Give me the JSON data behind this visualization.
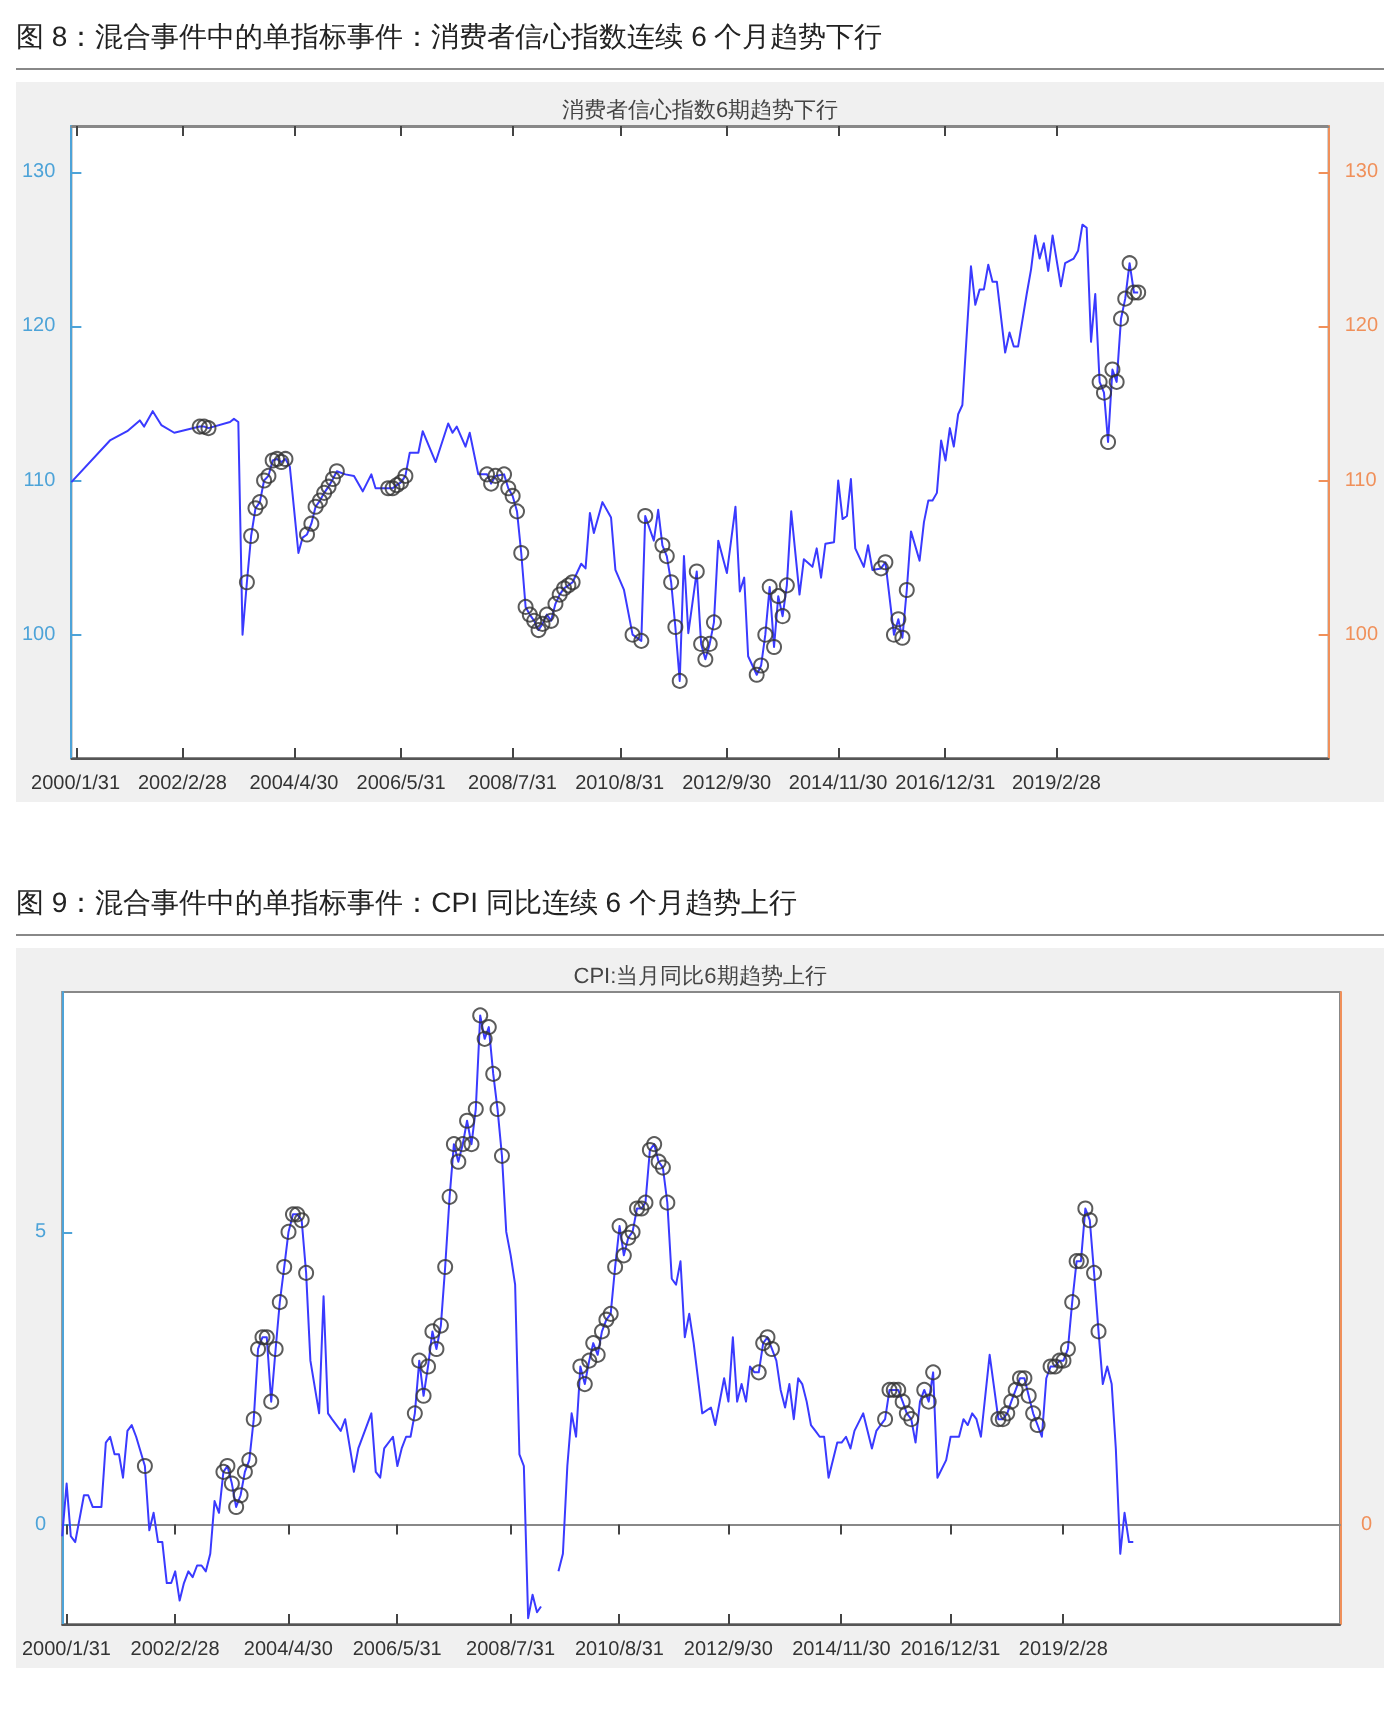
{
  "chart_data": [
    {
      "type": "line",
      "title": "图 8：混合事件中的单指标事件：消费者信心指数连续 6 个月趋势下行",
      "subtitle": "消费者信心指数6期趋势下行",
      "xlim": [
        "2000-01-01",
        "2024-06-15"
      ],
      "xticks": [
        {
          "value": "2000-01-31",
          "label": "2000/1/31"
        },
        {
          "value": "2002-02-28",
          "label": "2002/2/28"
        },
        {
          "value": "2004-04-30",
          "label": "2004/4/30"
        },
        {
          "value": "2006-05-31",
          "label": "2006/5/31"
        },
        {
          "value": "2008-07-31",
          "label": "2008/7/31"
        },
        {
          "value": "2010-08-31",
          "label": "2010/8/31"
        },
        {
          "value": "2012-09-30",
          "label": "2012/9/30"
        },
        {
          "value": "2014-11-30",
          "label": "2014/11/30"
        },
        {
          "value": "2016-12-31",
          "label": "2016/12/31"
        },
        {
          "value": "2019-02-28",
          "label": "2019/2/28"
        }
      ],
      "ylim": [
        92,
        133
      ],
      "yticks": [
        100,
        110,
        120,
        130
      ],
      "y2lim": [
        92,
        133
      ],
      "y2ticks": [
        100,
        110,
        120,
        130
      ],
      "series": [
        {
          "type": "line",
          "marker": "none",
          "color": "#3a3aff",
          "x": [
            "2000-01",
            "2000-10",
            "2001-02",
            "2001-05",
            "2001-06",
            "2001-08",
            "2001-10",
            "2002-01",
            "2002-07",
            "2002-08",
            "2002-09",
            "2003-02",
            "2003-03",
            "2003-04",
            "2003-05",
            "2003-06",
            "2003-07",
            "2003-08",
            "2003-09",
            "2003-10",
            "2003-11",
            "2003-12",
            "2004-01",
            "2004-02",
            "2004-03",
            "2004-04",
            "2004-06",
            "2004-07",
            "2004-08",
            "2004-09",
            "2004-10",
            "2004-11",
            "2004-12",
            "2005-01",
            "2005-02",
            "2005-03",
            "2005-05",
            "2005-07",
            "2005-09",
            "2005-11",
            "2005-12",
            "2006-03",
            "2006-04",
            "2006-05",
            "2006-06",
            "2006-07",
            "2006-08",
            "2006-10",
            "2006-11",
            "2007-02",
            "2007-05",
            "2007-06",
            "2007-07",
            "2007-09",
            "2007-10",
            "2007-12",
            "2008-02",
            "2008-03",
            "2008-04",
            "2008-06",
            "2008-07",
            "2008-08",
            "2008-09",
            "2008-10",
            "2008-11",
            "2008-12",
            "2009-01",
            "2009-02",
            "2009-03",
            "2009-04",
            "2009-05",
            "2009-06",
            "2009-07",
            "2009-08",
            "2009-09",
            "2009-10",
            "2009-12",
            "2010-01",
            "2010-02",
            "2010-03",
            "2010-05",
            "2010-07",
            "2010-08",
            "2010-10",
            "2010-12",
            "2011-02",
            "2011-03",
            "2011-05",
            "2011-06",
            "2011-07",
            "2011-08",
            "2011-09",
            "2011-10",
            "2011-11",
            "2011-12",
            "2012-01",
            "2012-03",
            "2012-04",
            "2012-05",
            "2012-06",
            "2012-07",
            "2012-08",
            "2012-10",
            "2012-12",
            "2013-01",
            "2013-02",
            "2013-03",
            "2013-05",
            "2013-06",
            "2013-07",
            "2013-08",
            "2013-09",
            "2013-10",
            "2013-11",
            "2013-12",
            "2014-01",
            "2014-03",
            "2014-04",
            "2014-06",
            "2014-07",
            "2014-08",
            "2014-09",
            "2014-11",
            "2014-12",
            "2015-01",
            "2015-02",
            "2015-03",
            "2015-04",
            "2015-06",
            "2015-07",
            "2015-08",
            "2015-10",
            "2015-11",
            "2016-01",
            "2016-02",
            "2016-03",
            "2016-04",
            "2016-05",
            "2016-07",
            "2016-08",
            "2016-09",
            "2016-10",
            "2016-11",
            "2016-12",
            "2017-01",
            "2017-02",
            "2017-03",
            "2017-04",
            "2017-05",
            "2017-07",
            "2017-08",
            "2017-09",
            "2017-10",
            "2017-11",
            "2017-12",
            "2018-01",
            "2018-03",
            "2018-04",
            "2018-05",
            "2018-06",
            "2018-08",
            "2018-09",
            "2018-10",
            "2018-11",
            "2018-12",
            "2019-01",
            "2019-02",
            "2019-04",
            "2019-05",
            "2019-07",
            "2019-08",
            "2019-09",
            "2019-10",
            "2019-11",
            "2019-12",
            "2020-01",
            "2020-02",
            "2020-03",
            "2020-04",
            "2020-05",
            "2020-06",
            "2020-07",
            "2020-08",
            "2020-09",
            "2020-10"
          ],
          "values": [
            109.9,
            112.6,
            113.2,
            113.9,
            113.5,
            114.5,
            113.6,
            113.1,
            113.5,
            113.5,
            113.4,
            113.8,
            114.0,
            113.8,
            100.0,
            103.4,
            106.4,
            108.2,
            108.6,
            110.0,
            110.3,
            111.3,
            111.4,
            111.2,
            111.4,
            110.9,
            105.3,
            106.3,
            106.5,
            107.2,
            108.3,
            108.7,
            109.2,
            109.6,
            110.1,
            110.6,
            110.4,
            110.3,
            109.3,
            110.4,
            109.5,
            109.5,
            109.5,
            109.7,
            109.9,
            110.3,
            111.8,
            111.8,
            113.2,
            111.2,
            113.7,
            113.1,
            113.5,
            112.2,
            113.1,
            110.4,
            110.4,
            109.8,
            110.3,
            110.4,
            109.5,
            109.0,
            108.0,
            105.3,
            101.8,
            101.3,
            100.9,
            100.3,
            100.7,
            101.3,
            100.9,
            102.0,
            102.6,
            103.0,
            103.2,
            103.4,
            104.6,
            104.3,
            107.9,
            106.6,
            108.6,
            107.6,
            104.2,
            102.9,
            100.0,
            99.6,
            107.7,
            106.1,
            108.1,
            105.8,
            105.1,
            103.4,
            100.5,
            97.0,
            105.1,
            100.1,
            104.1,
            99.4,
            98.4,
            99.4,
            100.8,
            106.1,
            104.0,
            108.3,
            102.8,
            103.7,
            98.6,
            97.4,
            98.0,
            100.0,
            103.1,
            99.2,
            102.5,
            101.2,
            103.2,
            108.0,
            102.6,
            104.9,
            104.4,
            105.6,
            103.7,
            105.9,
            106.0,
            110.0,
            107.5,
            107.7,
            110.1,
            105.6,
            104.4,
            105.8,
            104.2,
            104.3,
            104.7,
            100.0,
            101.0,
            99.8,
            102.9,
            106.7,
            104.8,
            107.3,
            108.7,
            108.7,
            109.2,
            112.6,
            111.3,
            113.4,
            112.2,
            114.3,
            114.9,
            123.9,
            121.4,
            122.4,
            122.4,
            124.0,
            122.9,
            122.9,
            118.3,
            119.6,
            118.7,
            118.7,
            122.1,
            123.7,
            125.9,
            124.4,
            125.4,
            123.6,
            125.9,
            122.6,
            124.1,
            124.4,
            124.9,
            126.6,
            126.4,
            119.0,
            122.1,
            116.4,
            115.7,
            112.5,
            117.2,
            116.4,
            120.5,
            121.8,
            124.1,
            122.2,
            122.2
          ]
        },
        {
          "type": "scatter",
          "marker": "circle",
          "color": "#333333",
          "x": [
            "2002-07",
            "2002-08",
            "2002-09",
            "2003-06",
            "2003-07",
            "2003-08",
            "2003-09",
            "2003-10",
            "2003-11",
            "2003-12",
            "2004-01",
            "2004-02",
            "2004-03",
            "2004-08",
            "2004-09",
            "2004-10",
            "2004-11",
            "2004-12",
            "2005-01",
            "2005-02",
            "2005-03",
            "2006-03",
            "2006-04",
            "2006-05",
            "2006-06",
            "2006-07",
            "2008-02",
            "2008-03",
            "2008-04",
            "2008-06",
            "2008-07",
            "2008-08",
            "2008-09",
            "2008-10",
            "2008-11",
            "2008-12",
            "2009-01",
            "2009-02",
            "2009-03",
            "2009-04",
            "2009-05",
            "2009-06",
            "2009-07",
            "2009-08",
            "2009-09",
            "2009-10",
            "2010-12",
            "2011-02",
            "2011-03",
            "2011-07",
            "2011-08",
            "2011-09",
            "2011-10",
            "2011-11",
            "2012-03",
            "2012-04",
            "2012-05",
            "2012-06",
            "2012-07",
            "2013-05",
            "2013-06",
            "2013-07",
            "2013-08",
            "2013-09",
            "2013-10",
            "2013-11",
            "2013-12",
            "2015-10",
            "2015-11",
            "2016-01",
            "2016-02",
            "2016-03",
            "2016-04",
            "2020-01",
            "2020-02",
            "2020-03",
            "2020-04",
            "2020-05",
            "2020-06",
            "2020-07",
            "2020-08",
            "2020-09",
            "2020-10"
          ],
          "values": [
            113.5,
            113.5,
            113.4,
            103.4,
            106.4,
            108.2,
            108.6,
            110.0,
            110.3,
            111.3,
            111.4,
            111.2,
            111.4,
            106.5,
            107.2,
            108.3,
            108.7,
            109.2,
            109.6,
            110.1,
            110.6,
            109.5,
            109.5,
            109.7,
            109.9,
            110.3,
            110.4,
            109.8,
            110.3,
            110.4,
            109.5,
            109.0,
            108.0,
            105.3,
            101.8,
            101.3,
            100.9,
            100.3,
            100.7,
            101.3,
            100.9,
            102.0,
            102.6,
            103.0,
            103.2,
            103.4,
            100.0,
            99.6,
            107.7,
            105.8,
            105.1,
            103.4,
            100.5,
            97.0,
            104.1,
            99.4,
            98.4,
            99.4,
            100.8,
            97.4,
            98.0,
            100.0,
            103.1,
            99.2,
            102.5,
            101.2,
            103.2,
            104.3,
            104.7,
            100.0,
            101.0,
            99.8,
            102.9,
            116.4,
            115.7,
            112.5,
            117.2,
            116.4,
            120.5,
            121.8,
            124.1,
            122.2,
            122.2
          ]
        }
      ]
    },
    {
      "type": "line",
      "title": "图 9：混合事件中的单指标事件：CPI 同比连续 6 个月趋势上行",
      "subtitle": "CPI:当月同比6期趋势上行",
      "xlim": [
        "2000-01-01",
        "2024-06-15"
      ],
      "xticks": [
        {
          "value": "2000-01-31",
          "label": "2000/1/31"
        },
        {
          "value": "2002-02-28",
          "label": "2002/2/28"
        },
        {
          "value": "2004-04-30",
          "label": "2004/4/30"
        },
        {
          "value": "2006-05-31",
          "label": "2006/5/31"
        },
        {
          "value": "2008-07-31",
          "label": "2008/7/31"
        },
        {
          "value": "2010-08-31",
          "label": "2010/8/31"
        },
        {
          "value": "2012-09-30",
          "label": "2012/9/30"
        },
        {
          "value": "2014-11-30",
          "label": "2014/11/30"
        },
        {
          "value": "2016-12-31",
          "label": "2016/12/31"
        },
        {
          "value": "2019-02-28",
          "label": "2019/2/28"
        }
      ],
      "ylim": [
        -1.7,
        9.1
      ],
      "yticks": [
        0,
        5
      ],
      "annotations": [
        "0"
      ],
      "series": [
        {
          "type": "line",
          "marker": "none",
          "color": "#3a3aff",
          "x": [
            "2000-01",
            "2000-02",
            "2000-03",
            "2000-04",
            "2000-06",
            "2000-07",
            "2000-08",
            "2000-10",
            "2000-11",
            "2000-12",
            "2001-01",
            "2001-02",
            "2001-03",
            "2001-04",
            "2001-05",
            "2001-06",
            "2001-08",
            "2001-09",
            "2001-10",
            "2001-11",
            "2001-12",
            "2002-01",
            "2002-02",
            "2002-03",
            "2002-04",
            "2002-05",
            "2002-06",
            "2002-07",
            "2002-08",
            "2002-09",
            "2002-10",
            "2002-11",
            "2002-12",
            "2003-01",
            "2003-02",
            "2003-03",
            "2003-04",
            "2003-05",
            "2003-06",
            "2003-07",
            "2003-08",
            "2003-09",
            "2003-10",
            "2003-11",
            "2003-12",
            "2004-01",
            "2004-02",
            "2004-03",
            "2004-04",
            "2004-05",
            "2004-06",
            "2004-07",
            "2004-08",
            "2004-09",
            "2004-10",
            "2004-12",
            "2005-01",
            "2005-02",
            "2005-03",
            "2005-05",
            "2005-06",
            "2005-08",
            "2005-09",
            "2005-12",
            "2006-01",
            "2006-02",
            "2006-03",
            "2006-05",
            "2006-06",
            "2006-07",
            "2006-08",
            "2006-09",
            "2006-10",
            "2006-11",
            "2006-12",
            "2007-01",
            "2007-02",
            "2007-03",
            "2007-04",
            "2007-05",
            "2007-06",
            "2007-07",
            "2007-08",
            "2007-09",
            "2007-10",
            "2007-11",
            "2007-12",
            "2008-01",
            "2008-02",
            "2008-03",
            "2008-04",
            "2008-05",
            "2008-06",
            "2008-07",
            "2008-08",
            "2008-09",
            "2008-10",
            "2008-11",
            "2008-12",
            "2009-01",
            "2009-02",
            "2009-03",
            "2009-04",
            "2009-05",
            "2009-06",
            "2009-07",
            "2009-08",
            "2009-09",
            "2009-10",
            "2009-11",
            "2009-12",
            "2010-01",
            "2010-02",
            "2010-03",
            "2010-04",
            "2010-05",
            "2010-06",
            "2010-07",
            "2010-08",
            "2010-09",
            "2010-10",
            "2010-11",
            "2010-12",
            "2011-01",
            "2011-02",
            "2011-03",
            "2011-04",
            "2011-05",
            "2011-06",
            "2011-07",
            "2011-08",
            "2011-09",
            "2011-10",
            "2011-11",
            "2011-12",
            "2012-01",
            "2012-02",
            "2012-04",
            "2012-06",
            "2012-07",
            "2012-09",
            "2012-10",
            "2012-11",
            "2012-12",
            "2013-01",
            "2013-02",
            "2013-03",
            "2013-04",
            "2013-05",
            "2013-06",
            "2013-07",
            "2013-08",
            "2013-09",
            "2013-10",
            "2013-11",
            "2013-12",
            "2014-01",
            "2014-02",
            "2014-03",
            "2014-04",
            "2014-05",
            "2014-06",
            "2014-07",
            "2014-08",
            "2014-09",
            "2014-11",
            "2014-12",
            "2015-01",
            "2015-02",
            "2015-03",
            "2015-05",
            "2015-07",
            "2015-08",
            "2015-10",
            "2015-11",
            "2015-12",
            "2016-01",
            "2016-02",
            "2016-03",
            "2016-04",
            "2016-05",
            "2016-06",
            "2016-07",
            "2016-08",
            "2016-09",
            "2016-10",
            "2016-12",
            "2017-01",
            "2017-03",
            "2017-04",
            "2017-05",
            "2017-06",
            "2017-07",
            "2017-08",
            "2017-10",
            "2017-12",
            "2018-01",
            "2018-02",
            "2018-03",
            "2018-04",
            "2018-05",
            "2018-06",
            "2018-07",
            "2018-08",
            "2018-09",
            "2018-10",
            "2018-11",
            "2018-12",
            "2019-01",
            "2019-02",
            "2019-03",
            "2019-04",
            "2019-05",
            "2019-06",
            "2019-07",
            "2019-08",
            "2019-09",
            "2019-10",
            "2019-11",
            "2019-12",
            "2020-01",
            "2020-02",
            "2020-03",
            "2020-04",
            "2020-05",
            "2020-06",
            "2020-07"
          ],
          "values": [
            -0.2,
            0.7,
            -0.2,
            -0.3,
            0.5,
            0.5,
            0.3,
            0.3,
            1.4,
            1.5,
            1.2,
            1.2,
            0.8,
            1.6,
            1.7,
            1.5,
            1.0,
            -0.1,
            0.2,
            -0.3,
            -0.3,
            -1.0,
            -1.0,
            -0.8,
            -1.3,
            -1.0,
            -0.8,
            -0.9,
            -0.7,
            -0.7,
            -0.8,
            -0.5,
            0.4,
            0.2,
            0.9,
            1.0,
            0.7,
            0.3,
            0.5,
            0.9,
            1.1,
            1.8,
            3.0,
            3.2,
            3.2,
            2.1,
            3.0,
            3.8,
            4.4,
            5.0,
            5.3,
            5.3,
            5.2,
            4.3,
            2.8,
            1.9,
            3.9,
            1.9,
            1.8,
            1.6,
            1.8,
            0.9,
            1.3,
            1.9,
            0.9,
            0.8,
            1.3,
            1.5,
            1.0,
            1.3,
            1.5,
            1.5,
            1.9,
            2.8,
            2.2,
            2.7,
            3.3,
            3.0,
            3.4,
            4.4,
            5.6,
            6.5,
            6.2,
            6.5,
            6.9,
            6.5,
            7.1,
            8.7,
            8.3,
            8.5,
            7.7,
            7.1,
            6.3,
            5.0,
            4.6,
            4.1,
            1.2,
            1.0,
            -1.6,
            -1.2,
            -1.5,
            -1.4,
            null,
            null,
            null,
            -0.8,
            -0.5,
            1.0,
            1.9,
            1.5,
            2.7,
            2.4,
            2.8,
            3.1,
            2.9,
            3.3,
            3.5,
            3.6,
            4.4,
            5.1,
            4.6,
            4.9,
            5.0,
            5.4,
            5.4,
            5.5,
            6.4,
            6.5,
            6.2,
            6.1,
            5.5,
            4.2,
            4.1,
            4.5,
            3.2,
            3.6,
            3.1,
            1.9,
            2.0,
            1.7,
            2.5,
            2.1,
            3.2,
            2.1,
            2.4,
            2.1,
            2.7,
            2.6,
            2.6,
            3.1,
            3.2,
            3.0,
            2.8,
            2.3,
            2.0,
            2.4,
            1.8,
            2.5,
            2.4,
            2.1,
            1.7,
            1.6,
            1.5,
            1.5,
            0.8,
            1.4,
            1.4,
            1.5,
            1.3,
            1.6,
            1.9,
            1.3,
            1.6,
            1.8,
            2.3,
            2.3,
            2.3,
            2.1,
            1.9,
            1.8,
            1.4,
            2.1,
            2.3,
            2.1,
            2.6,
            0.8,
            1.1,
            1.5,
            1.5,
            1.8,
            1.7,
            1.9,
            1.8,
            1.5,
            2.9,
            1.8,
            1.8,
            1.9,
            2.1,
            2.3,
            2.5,
            2.5,
            2.2,
            1.9,
            1.7,
            1.5,
            2.5,
            2.7,
            2.7,
            2.8,
            2.8,
            3.0,
            3.8,
            4.5,
            4.5,
            5.4,
            5.2,
            4.3,
            3.3,
            2.4,
            2.7,
            2.4,
            1.3,
            -0.5,
            0.2,
            -0.3,
            -0.3
          ]
        },
        {
          "type": "scatter",
          "marker": "circle",
          "color": "#333333",
          "x": [
            "2001-08",
            "2003-02",
            "2003-03",
            "2003-04",
            "2003-05",
            "2003-06",
            "2003-07",
            "2003-08",
            "2003-09",
            "2003-10",
            "2003-11",
            "2003-12",
            "2004-01",
            "2004-02",
            "2004-03",
            "2004-04",
            "2004-05",
            "2004-06",
            "2004-07",
            "2004-08",
            "2004-09",
            "2006-10",
            "2006-11",
            "2006-12",
            "2007-01",
            "2007-02",
            "2007-03",
            "2007-04",
            "2007-05",
            "2007-06",
            "2007-07",
            "2007-08",
            "2007-09",
            "2007-10",
            "2007-11",
            "2007-12",
            "2008-01",
            "2008-02",
            "2008-03",
            "2008-04",
            "2008-05",
            "2008-06",
            "2009-12",
            "2010-01",
            "2010-02",
            "2010-03",
            "2010-04",
            "2010-05",
            "2010-06",
            "2010-07",
            "2010-08",
            "2010-09",
            "2010-10",
            "2010-11",
            "2010-12",
            "2011-01",
            "2011-02",
            "2011-03",
            "2011-04",
            "2011-05",
            "2011-06",
            "2011-07",
            "2011-08",
            "2013-05",
            "2013-06",
            "2013-07",
            "2013-08",
            "2015-10",
            "2015-11",
            "2015-12",
            "2016-01",
            "2016-02",
            "2016-03",
            "2016-04",
            "2016-07",
            "2016-08",
            "2016-09",
            "2017-12",
            "2018-01",
            "2018-02",
            "2018-03",
            "2018-04",
            "2018-05",
            "2018-06",
            "2018-07",
            "2018-08",
            "2018-09",
            "2018-12",
            "2019-01",
            "2019-02",
            "2019-03",
            "2019-04",
            "2019-05",
            "2019-06",
            "2019-07",
            "2019-08",
            "2019-09",
            "2019-10",
            "2019-11"
          ],
          "values": [
            1.0,
            0.9,
            1.0,
            0.7,
            0.3,
            0.5,
            0.9,
            1.1,
            1.8,
            3.0,
            3.2,
            3.2,
            2.1,
            3.0,
            3.8,
            4.4,
            5.0,
            5.3,
            5.3,
            5.2,
            4.3,
            1.9,
            2.8,
            2.2,
            2.7,
            3.3,
            3.0,
            3.4,
            4.4,
            5.6,
            6.5,
            6.2,
            6.5,
            6.9,
            6.5,
            7.1,
            8.7,
            8.3,
            8.5,
            7.7,
            7.1,
            6.3,
            2.7,
            2.4,
            2.8,
            3.1,
            2.9,
            3.3,
            3.5,
            3.6,
            4.4,
            5.1,
            4.6,
            4.9,
            5.0,
            5.4,
            5.4,
            5.5,
            6.4,
            6.5,
            6.2,
            6.1,
            5.5,
            2.6,
            3.1,
            3.2,
            3.0,
            1.8,
            2.3,
            2.3,
            2.3,
            2.1,
            1.9,
            1.8,
            2.3,
            2.1,
            2.6,
            1.8,
            1.8,
            1.9,
            2.1,
            2.3,
            2.5,
            2.5,
            2.2,
            1.9,
            1.7,
            2.7,
            2.7,
            2.8,
            2.8,
            3.0,
            3.8,
            4.5,
            4.5,
            5.4,
            5.2,
            4.3,
            3.3
          ]
        }
      ]
    }
  ]
}
